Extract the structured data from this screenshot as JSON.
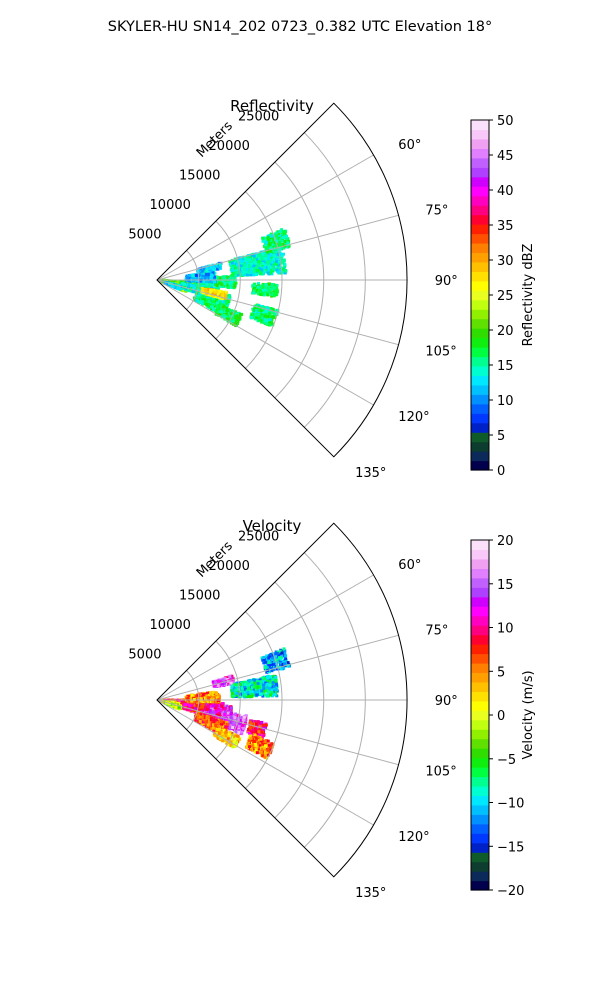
{
  "suptitle": "SKYLER-HU  SN14_202  0723_0.382 UTC Elevation 18°",
  "chart_data": [
    {
      "type": "heatmap",
      "title": "Reflectivity",
      "radial_label": "Meters",
      "radial_ticks": [
        5000,
        10000,
        15000,
        20000,
        25000
      ],
      "radial_tick_labels": [
        "5000",
        "10000",
        "15000",
        "20000",
        "25000"
      ],
      "r_max": 30000,
      "angle_range_deg": [
        45,
        135
      ],
      "angle_ticks": [
        60,
        75,
        90,
        105,
        120,
        135
      ],
      "angle_tick_labels": [
        "60°",
        "75°",
        "90°",
        "105°",
        "120°",
        "135°"
      ],
      "colorbar": {
        "label": "Reflectivity dBZ",
        "range": [
          0,
          50
        ],
        "ticks": [
          0,
          5,
          10,
          15,
          20,
          25,
          30,
          35,
          40,
          45,
          50
        ],
        "tick_labels": [
          "0",
          "5",
          "10",
          "15",
          "20",
          "25",
          "30",
          "35",
          "40",
          "45",
          "50"
        ],
        "colors": [
          "#00004c",
          "#0b2a5a",
          "#0d3d2e",
          "#0f5b2a",
          "#0020c8",
          "#0038ff",
          "#0060ff",
          "#0090ff",
          "#00c0ff",
          "#00e8ff",
          "#00ffd0",
          "#00ff90",
          "#00ff40",
          "#10ee10",
          "#30dd00",
          "#60e000",
          "#90f000",
          "#c0ff10",
          "#e8ff20",
          "#ffff00",
          "#ffe000",
          "#ffc000",
          "#ffa000",
          "#ff8000",
          "#ff5000",
          "#ff2000",
          "#ff0030",
          "#ff0080",
          "#ff00c0",
          "#ff00ff",
          "#d000ff",
          "#b040ff",
          "#c060ff",
          "#e080ff",
          "#f0a0f0",
          "#f8c8f8",
          "#fbe0fb"
        ]
      },
      "grid": true,
      "regions": [
        {
          "r": [
            0.5,
            3.8
          ],
          "th": [
            99,
            112
          ],
          "v": 22
        },
        {
          "r": [
            0.3,
            4.8
          ],
          "th": [
            93,
            105
          ],
          "v": 20
        },
        {
          "r": [
            4.5,
            9.5
          ],
          "th": [
            87,
            96
          ],
          "v": 17
        },
        {
          "r": [
            3.0,
            7.5
          ],
          "th": [
            98,
            108
          ],
          "v": 14
        },
        {
          "r": [
            5.0,
            9.0
          ],
          "th": [
            102,
            118
          ],
          "v": 16
        },
        {
          "r": [
            8.0,
            11.0
          ],
          "th": [
            112,
            120
          ],
          "v": 17
        },
        {
          "r": [
            3.5,
            7.0
          ],
          "th": [
            82,
            92
          ],
          "v": 11
        },
        {
          "r": [
            9.0,
            15.5
          ],
          "th": [
            75,
            87
          ],
          "v": 14
        },
        {
          "r": [
            11.5,
            14.5
          ],
          "th": [
            92,
            98
          ],
          "v": 17
        },
        {
          "r": [
            13.5,
            16.5
          ],
          "th": [
            68,
            76
          ],
          "v": 16
        },
        {
          "r": [
            5.5,
            8.5
          ],
          "th": [
            100,
            106
          ],
          "v": 28
        },
        {
          "r": [
            12.0,
            15.0
          ],
          "th": [
            104,
            112
          ],
          "v": 16
        },
        {
          "r": [
            5.0,
            8.0
          ],
          "th": [
            75,
            80
          ],
          "v": 12
        },
        {
          "r": [
            1.0,
            3.0
          ],
          "th": [
            104,
            112
          ],
          "v": 12
        }
      ]
    },
    {
      "type": "heatmap",
      "title": "Velocity",
      "radial_label": "Meters",
      "radial_ticks": [
        5000,
        10000,
        15000,
        20000,
        25000
      ],
      "radial_tick_labels": [
        "5000",
        "10000",
        "15000",
        "20000",
        "25000"
      ],
      "r_max": 30000,
      "angle_range_deg": [
        45,
        135
      ],
      "angle_ticks": [
        60,
        75,
        90,
        105,
        120,
        135
      ],
      "angle_tick_labels": [
        "60°",
        "75°",
        "90°",
        "105°",
        "120°",
        "135°"
      ],
      "colorbar": {
        "label": "Velocity (m/s)",
        "range": [
          -20,
          20
        ],
        "ticks": [
          -20,
          -15,
          -10,
          -5,
          0,
          5,
          10,
          15,
          20
        ],
        "tick_labels": [
          "−20",
          "−15",
          "−10",
          "−5",
          "0",
          "5",
          "10",
          "15",
          "20"
        ],
        "colors": [
          "#00004c",
          "#0b2a5a",
          "#0d3d2e",
          "#0f5b2a",
          "#0020c8",
          "#0038ff",
          "#0060ff",
          "#0090ff",
          "#00c0ff",
          "#00e8ff",
          "#00ffd0",
          "#00ff90",
          "#00ff40",
          "#10ee10",
          "#30dd00",
          "#60e000",
          "#90f000",
          "#c0ff10",
          "#e8ff20",
          "#ffff00",
          "#ffe000",
          "#ffc000",
          "#ffa000",
          "#ff8000",
          "#ff5000",
          "#ff2000",
          "#ff0030",
          "#ff0080",
          "#ff00c0",
          "#ff00ff",
          "#d000ff",
          "#b040ff",
          "#c060ff",
          "#e080ff",
          "#f0a0f0",
          "#f8c8f8",
          "#fbe0fb"
        ]
      },
      "grid": true,
      "regions": [
        {
          "r": [
            0.3,
            4.5
          ],
          "th": [
            90,
            98
          ],
          "v": 8
        },
        {
          "r": [
            0.5,
            3.5
          ],
          "th": [
            98,
            106
          ],
          "v": 2
        },
        {
          "r": [
            3.0,
            8.0
          ],
          "th": [
            93,
            108
          ],
          "v": 9
        },
        {
          "r": [
            6.0,
            9.0
          ],
          "th": [
            95,
            110
          ],
          "v": 12
        },
        {
          "r": [
            8.0,
            11.0
          ],
          "th": [
            100,
            112
          ],
          "v": 14
        },
        {
          "r": [
            5.0,
            9.0
          ],
          "th": [
            108,
            118
          ],
          "v": 6
        },
        {
          "r": [
            8.0,
            11.0
          ],
          "th": [
            114,
            122
          ],
          "v": 3
        },
        {
          "r": [
            3.5,
            7.5
          ],
          "th": [
            82,
            92
          ],
          "v": 5
        },
        {
          "r": [
            9.0,
            14.5
          ],
          "th": [
            78,
            88
          ],
          "v": -9
        },
        {
          "r": [
            13.5,
            16.5
          ],
          "th": [
            68,
            76
          ],
          "v": -11
        },
        {
          "r": [
            7.0,
            9.5
          ],
          "th": [
            72,
            78
          ],
          "v": 14
        },
        {
          "r": [
            11.5,
            13.5
          ],
          "th": [
            102,
            110
          ],
          "v": 9
        },
        {
          "r": [
            12.0,
            15.0
          ],
          "th": [
            110,
            118
          ],
          "v": 5
        },
        {
          "r": [
            1.0,
            3.0
          ],
          "th": [
            104,
            112
          ],
          "v": -2
        }
      ]
    }
  ]
}
